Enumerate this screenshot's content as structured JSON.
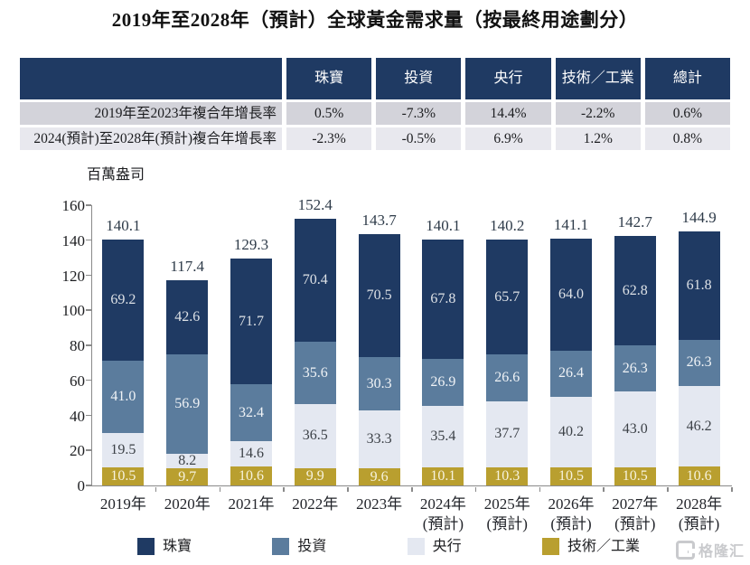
{
  "title": "2019年至2028年（預計）全球黃金需求量（按最終用途劃分）",
  "table": {
    "headers": [
      "",
      "珠寶",
      "投資",
      "央行",
      "技術／工業",
      "總計"
    ],
    "rows": [
      {
        "label": "2019年至2023年複合年增長率",
        "values": [
          "0.5%",
          "-7.3%",
          "14.4%",
          "-2.2%",
          "0.6%"
        ]
      },
      {
        "label": "2024(預計)至2028年(預計)複合年增長率",
        "values": [
          "-2.3%",
          "-0.5%",
          "6.9%",
          "1.2%",
          "0.8%"
        ]
      }
    ]
  },
  "chart_data": {
    "type": "bar",
    "stacked": true,
    "unit_label": "百萬盎司",
    "categories": [
      "2019年",
      "2020年",
      "2021年",
      "2022年",
      "2023年",
      "2024年",
      "2025年",
      "2026年",
      "2027年",
      "2028年"
    ],
    "category_sublabels": [
      "",
      "",
      "",
      "",
      "",
      "(預計)",
      "(預計)",
      "(預計)",
      "(預計)",
      "(預計)"
    ],
    "series": [
      {
        "name": "珠寶",
        "key": "jewelry",
        "color": "#1f3a63",
        "values": [
          69.2,
          42.6,
          71.7,
          70.4,
          70.5,
          67.8,
          65.7,
          64.0,
          62.8,
          61.8
        ]
      },
      {
        "name": "投資",
        "key": "investment",
        "color": "#5b7c9d",
        "values": [
          41.0,
          56.9,
          32.4,
          35.6,
          30.3,
          26.9,
          26.6,
          26.4,
          26.3,
          26.3
        ]
      },
      {
        "name": "央行",
        "key": "central-bank",
        "color": "#e4e8f1",
        "values": [
          19.5,
          8.2,
          14.6,
          36.5,
          33.3,
          35.4,
          37.7,
          40.2,
          43.0,
          46.2
        ]
      },
      {
        "name": "技術／工業",
        "key": "technology-industry",
        "color": "#b99f2f",
        "values": [
          10.5,
          9.7,
          10.6,
          9.9,
          9.6,
          10.1,
          10.3,
          10.5,
          10.5,
          10.6
        ]
      }
    ],
    "totals": [
      140.1,
      117.4,
      129.3,
      152.4,
      143.7,
      140.1,
      140.2,
      141.1,
      142.7,
      144.9
    ],
    "ylim": [
      0,
      160
    ],
    "yticks": [
      0,
      20,
      40,
      60,
      80,
      100,
      120,
      140,
      160
    ],
    "grid": false,
    "legend_position": "bottom"
  },
  "watermark": {
    "text": "格隆汇"
  }
}
